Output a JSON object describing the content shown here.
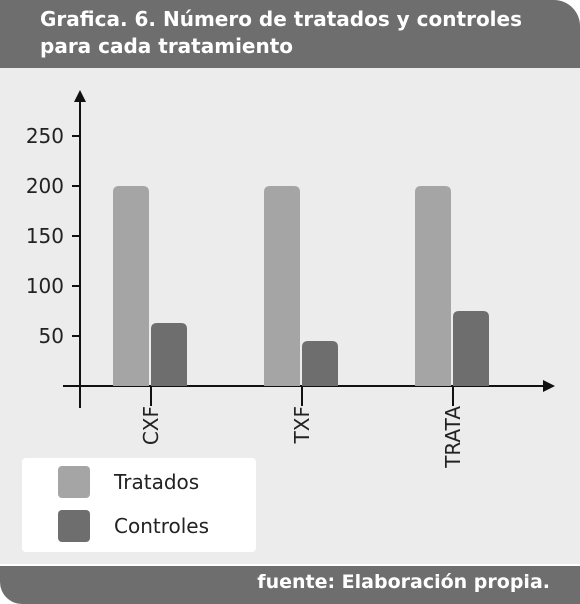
{
  "header": {
    "title": "Grafica. 6. Número de tratados y controles para cada tratamiento"
  },
  "footer": {
    "source": "fuente: Elaboración propia."
  },
  "colors": {
    "frame": "#6e6e6e",
    "panel": "#ececec",
    "tratados": "#a5a5a5",
    "controles": "#6e6e6e"
  },
  "chart_data": {
    "type": "bar",
    "title": "Grafica. 6. Número de tratados y controles para cada tratamiento",
    "categories": [
      "CXF",
      "TXF",
      "TRATA"
    ],
    "series": [
      {
        "name": "Tratados",
        "values": [
          200,
          200,
          200
        ]
      },
      {
        "name": "Controles",
        "values": [
          63,
          45,
          75
        ]
      }
    ],
    "yticks": [
      50,
      100,
      150,
      200,
      250
    ],
    "ylim": [
      0,
      290
    ],
    "grid": false,
    "legend": "bottom-left"
  }
}
